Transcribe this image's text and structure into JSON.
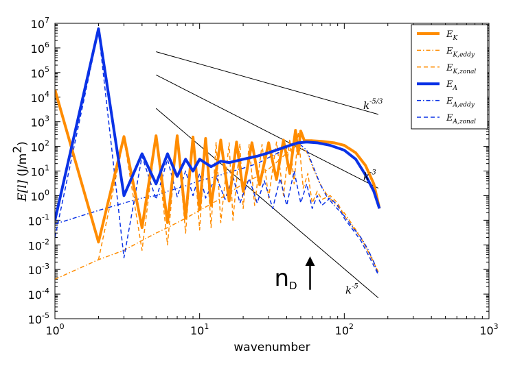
{
  "chart_data": {
    "type": "line",
    "xscale": "log",
    "yscale": "log",
    "xlim": [
      1,
      1000
    ],
    "ylim": [
      1e-05,
      10000000
    ],
    "xlabel": "wavenumber",
    "ylabel": {
      "main": "E[l]",
      "unit_prefix": "(J/m",
      "unit_exp": "2",
      "unit_suffix": ")"
    },
    "x_ticks": [
      {
        "value": 1,
        "base": "10",
        "exp": "0"
      },
      {
        "value": 10,
        "base": "10",
        "exp": "1"
      },
      {
        "value": 100,
        "base": "10",
        "exp": "2"
      },
      {
        "value": 1000,
        "base": "10",
        "exp": "3"
      }
    ],
    "y_ticks": [
      {
        "value": 1e-05,
        "base": "10",
        "exp": "-5"
      },
      {
        "value": 0.0001,
        "base": "10",
        "exp": "-4"
      },
      {
        "value": 0.001,
        "base": "10",
        "exp": "-3"
      },
      {
        "value": 0.01,
        "base": "10",
        "exp": "-2"
      },
      {
        "value": 0.1,
        "base": "10",
        "exp": "-1"
      },
      {
        "value": 1,
        "base": "10",
        "exp": "0"
      },
      {
        "value": 10,
        "base": "10",
        "exp": "1"
      },
      {
        "value": 100,
        "base": "10",
        "exp": "2"
      },
      {
        "value": 1000,
        "base": "10",
        "exp": "3"
      },
      {
        "value": 10000,
        "base": "10",
        "exp": "4"
      },
      {
        "value": 100000,
        "base": "10",
        "exp": "5"
      },
      {
        "value": 1000000,
        "base": "10",
        "exp": "6"
      },
      {
        "value": 10000000,
        "base": "10",
        "exp": "7"
      }
    ],
    "colors": {
      "orange": "#ff8c00",
      "blue": "#0a32e6",
      "reference": "#000000"
    },
    "series": [
      {
        "name": "E_K",
        "label_main": "E",
        "label_sub": "K",
        "color": "#ff8c00",
        "style": "solid",
        "width": 4,
        "points": [
          [
            1,
            20000
          ],
          [
            2,
            0.013
          ],
          [
            3,
            250
          ],
          [
            4,
            0.05
          ],
          [
            5,
            270
          ],
          [
            6,
            0.08
          ],
          [
            7,
            270
          ],
          [
            8,
            0.12
          ],
          [
            9,
            240
          ],
          [
            10,
            0.3
          ],
          [
            11,
            210
          ],
          [
            12,
            0.4
          ],
          [
            14,
            180
          ],
          [
            16,
            0.6
          ],
          [
            18,
            150
          ],
          [
            20,
            1.5
          ],
          [
            23,
            140
          ],
          [
            26,
            2.8
          ],
          [
            30,
            140
          ],
          [
            34,
            4.5
          ],
          [
            38,
            180
          ],
          [
            42,
            8
          ],
          [
            46,
            450
          ],
          [
            48,
            50
          ],
          [
            50,
            420
          ],
          [
            53,
            170
          ],
          [
            60,
            170
          ],
          [
            70,
            160
          ],
          [
            85,
            140
          ],
          [
            100,
            110
          ],
          [
            120,
            55
          ],
          [
            140,
            17
          ],
          [
            160,
            3
          ],
          [
            175,
            0.3
          ]
        ]
      },
      {
        "name": "E_K,eddy",
        "label_main": "E",
        "label_sub": "K,eddy",
        "color": "#ff8c00",
        "style": "dashdot",
        "width": 1.5,
        "points": [
          [
            1,
            0.0004
          ],
          [
            2,
            0.0025
          ],
          [
            3,
            0.006
          ],
          [
            4,
            0.015
          ],
          [
            5,
            0.03
          ],
          [
            6,
            0.05
          ],
          [
            8,
            0.12
          ],
          [
            10,
            0.25
          ],
          [
            13,
            0.6
          ],
          [
            16,
            1.3
          ],
          [
            20,
            3
          ],
          [
            25,
            6
          ],
          [
            30,
            12
          ],
          [
            36,
            30
          ],
          [
            42,
            70
          ],
          [
            48,
            110
          ],
          [
            55,
            60
          ],
          [
            62,
            10
          ],
          [
            68,
            3
          ],
          [
            75,
            1.2
          ],
          [
            85,
            0.5
          ],
          [
            100,
            0.2
          ],
          [
            115,
            0.06
          ],
          [
            130,
            0.02
          ],
          [
            145,
            0.006
          ],
          [
            160,
            0.002
          ],
          [
            172,
            0.0007
          ]
        ]
      },
      {
        "name": "E_K,zonal",
        "label_main": "E",
        "label_sub": "K,zonal",
        "color": "#ff8c00",
        "style": "dashed",
        "width": 1.5,
        "points": [
          [
            2,
            0.0025
          ],
          [
            3,
            200
          ],
          [
            4,
            0.006
          ],
          [
            5,
            250
          ],
          [
            6,
            0.01
          ],
          [
            7,
            250
          ],
          [
            8,
            0.03
          ],
          [
            9,
            200
          ],
          [
            10,
            0.04
          ],
          [
            11,
            180
          ],
          [
            12,
            0.05
          ],
          [
            13,
            150
          ],
          [
            14,
            0.08
          ],
          [
            16,
            140
          ],
          [
            17,
            0.1
          ],
          [
            19,
            130
          ],
          [
            20,
            0.3
          ],
          [
            22,
            120
          ],
          [
            24,
            0.4
          ],
          [
            27,
            120
          ],
          [
            30,
            0.8
          ],
          [
            34,
            150
          ],
          [
            38,
            1
          ],
          [
            42,
            200
          ],
          [
            45,
            3
          ],
          [
            48,
            380
          ],
          [
            52,
            2
          ],
          [
            56,
            8
          ],
          [
            60,
            0.5
          ],
          [
            65,
            1.5
          ],
          [
            70,
            0.7
          ],
          [
            80,
            1
          ],
          [
            90,
            0.5
          ],
          [
            100,
            0.15
          ],
          [
            115,
            0.05
          ],
          [
            130,
            0.02
          ],
          [
            150,
            0.004
          ],
          [
            172,
            0.0008
          ]
        ]
      },
      {
        "name": "E_A",
        "label_main": "E",
        "label_sub": "A",
        "color": "#0a32e6",
        "style": "solid",
        "width": 4,
        "points": [
          [
            1,
            0.1
          ],
          [
            2,
            6000000
          ],
          [
            3,
            1
          ],
          [
            4,
            50
          ],
          [
            5,
            3
          ],
          [
            6,
            50
          ],
          [
            7,
            6
          ],
          [
            8,
            30
          ],
          [
            9,
            10
          ],
          [
            10,
            30
          ],
          [
            12,
            15
          ],
          [
            14,
            25
          ],
          [
            16,
            22
          ],
          [
            20,
            30
          ],
          [
            25,
            40
          ],
          [
            30,
            55
          ],
          [
            36,
            80
          ],
          [
            42,
            110
          ],
          [
            48,
            140
          ],
          [
            55,
            150
          ],
          [
            65,
            140
          ],
          [
            80,
            110
          ],
          [
            100,
            70
          ],
          [
            120,
            30
          ],
          [
            140,
            7
          ],
          [
            160,
            1.5
          ],
          [
            175,
            0.3
          ]
        ]
      },
      {
        "name": "E_A,eddy",
        "label_main": "E",
        "label_sub": "A,eddy",
        "color": "#0a32e6",
        "style": "dashdot",
        "width": 1.5,
        "points": [
          [
            1,
            0.07
          ],
          [
            2,
            0.25
          ],
          [
            3,
            0.5
          ],
          [
            4,
            0.8
          ],
          [
            5,
            1
          ],
          [
            6,
            1.5
          ],
          [
            8,
            2.5
          ],
          [
            10,
            4
          ],
          [
            13,
            6
          ],
          [
            16,
            9
          ],
          [
            20,
            13
          ],
          [
            25,
            20
          ],
          [
            30,
            35
          ],
          [
            36,
            60
          ],
          [
            42,
            100
          ],
          [
            48,
            140
          ],
          [
            55,
            70
          ],
          [
            62,
            12
          ],
          [
            68,
            3
          ],
          [
            75,
            1
          ],
          [
            85,
            0.4
          ],
          [
            100,
            0.15
          ],
          [
            115,
            0.05
          ],
          [
            130,
            0.02
          ],
          [
            145,
            0.007
          ],
          [
            160,
            0.002
          ],
          [
            172,
            0.0006
          ]
        ]
      },
      {
        "name": "E_A,zonal",
        "label_main": "E",
        "label_sub": "A,zonal",
        "color": "#0a32e6",
        "style": "dashed",
        "width": 1.5,
        "points": [
          [
            1,
            0.02
          ],
          [
            2,
            5000000
          ],
          [
            3,
            0.003
          ],
          [
            4,
            40
          ],
          [
            5,
            0.7
          ],
          [
            6,
            30
          ],
          [
            7,
            0.9
          ],
          [
            8,
            10
          ],
          [
            9,
            1
          ],
          [
            10,
            8
          ],
          [
            11,
            0.8
          ],
          [
            13,
            6
          ],
          [
            15,
            0.7
          ],
          [
            17,
            6
          ],
          [
            19,
            0.5
          ],
          [
            22,
            5
          ],
          [
            25,
            0.5
          ],
          [
            28,
            4
          ],
          [
            32,
            0.3
          ],
          [
            36,
            5
          ],
          [
            40,
            0.4
          ],
          [
            45,
            10
          ],
          [
            50,
            0.5
          ],
          [
            55,
            3
          ],
          [
            60,
            0.3
          ],
          [
            65,
            1
          ],
          [
            70,
            0.4
          ],
          [
            80,
            0.8
          ],
          [
            90,
            0.4
          ],
          [
            100,
            0.12
          ],
          [
            115,
            0.04
          ],
          [
            130,
            0.015
          ],
          [
            150,
            0.003
          ],
          [
            172,
            0.0006
          ]
        ]
      }
    ],
    "reference_lines": [
      {
        "label_main": "k",
        "label_exp": "-5/3",
        "x": [
          5,
          172
        ],
        "y": [
          700000,
          2000
        ]
      },
      {
        "label_main": "k",
        "label_exp": "-3",
        "x": [
          5,
          172
        ],
        "y": [
          80000,
          2
        ]
      },
      {
        "label_main": "k",
        "label_exp": "-5",
        "x": [
          5,
          172
        ],
        "y": [
          3500,
          7e-05
        ]
      }
    ],
    "annotation": {
      "text": "n",
      "subscript": "D",
      "arrow_x": 58,
      "arrow_y_from": 0.00015,
      "arrow_y_to": 0.003
    }
  }
}
